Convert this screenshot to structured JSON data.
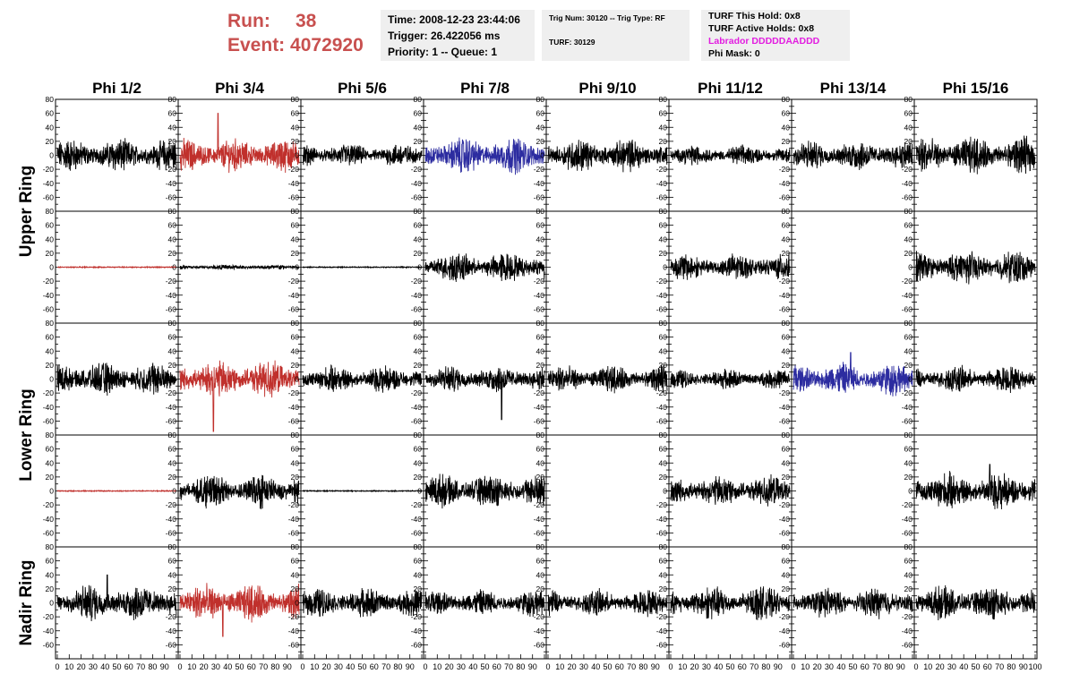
{
  "header": {
    "run_label": "Run:",
    "run_value": "38",
    "event_label": "Event:",
    "event_value": "4072920",
    "time": "Time: 2008-12-23 23:44:06",
    "trigger": "Trigger: 26.422056 ms",
    "priority": "Priority: 1 -- Queue: 1",
    "trig_num": "Trig Num: 30120 -- Trig Type: RF",
    "turf": "TURF: 30129",
    "turf_this_hold": "TURF This Hold: 0x8",
    "turf_active_holds": "TURF Active Holds: 0x8",
    "labrador": "Labrador DDDDDAADDD",
    "phi_mask": "Phi Mask: 0"
  },
  "colors": {
    "header_red": "#c8504f",
    "labrador_magenta": "#e21de0",
    "trace_black": "#000000",
    "trace_red": "#c0302c",
    "trace_blue": "#2c2ca0",
    "info_bg": "#efefef"
  },
  "chart_data": {
    "type": "line",
    "columns": [
      "Phi 1/2",
      "Phi 3/4",
      "Phi 5/6",
      "Phi 7/8",
      "Phi 9/10",
      "Phi 11/12",
      "Phi 13/14",
      "Phi 15/16"
    ],
    "ring_labels": [
      "Upper Ring",
      "Lower Ring",
      "Nadir Ring"
    ],
    "ylim": [
      -80,
      80
    ],
    "y_ticks": [
      -60,
      -40,
      -20,
      0,
      20,
      40,
      60,
      80
    ],
    "xlim": [
      0,
      100
    ],
    "x_tick_labels": [
      "0",
      "10",
      "20",
      "30",
      "40",
      "50",
      "60",
      "70",
      "80",
      "90",
      "100"
    ],
    "grid": false,
    "rows": [
      {
        "ring": "Upper Ring",
        "panels": [
          {
            "color": "black",
            "amplitude": 20,
            "spike": null
          },
          {
            "color": "red",
            "amplitude": 20,
            "spike": {
              "x": 32,
              "y": 60
            }
          },
          {
            "color": "black",
            "amplitude": 14,
            "spike": null
          },
          {
            "color": "blue",
            "amplitude": 22,
            "spike": null
          },
          {
            "color": "black",
            "amplitude": 20,
            "spike": null
          },
          {
            "color": "black",
            "amplitude": 12,
            "spike": null
          },
          {
            "color": "black",
            "amplitude": 18,
            "spike": null
          },
          {
            "color": "black",
            "amplitude": 22,
            "spike": null
          }
        ]
      },
      {
        "ring": "Upper Ring",
        "panels": [
          {
            "color": "red",
            "amplitude": 0,
            "spike": null
          },
          {
            "color": "black",
            "amplitude": 3,
            "spike": null
          },
          {
            "color": "black",
            "amplitude": 0,
            "spike": null
          },
          {
            "color": "black",
            "amplitude": 18,
            "spike": null
          },
          {
            "color": "none",
            "amplitude": 0,
            "spike": null
          },
          {
            "color": "black",
            "amplitude": 16,
            "spike": null
          },
          {
            "color": "none",
            "amplitude": 0,
            "spike": null
          },
          {
            "color": "black",
            "amplitude": 20,
            "spike": null
          }
        ]
      },
      {
        "ring": "Lower Ring",
        "panels": [
          {
            "color": "black",
            "amplitude": 20,
            "spike": null
          },
          {
            "color": "red",
            "amplitude": 22,
            "spike": {
              "x": 28,
              "y": -75
            }
          },
          {
            "color": "black",
            "amplitude": 16,
            "spike": null
          },
          {
            "color": "black",
            "amplitude": 16,
            "spike": {
              "x": 64,
              "y": -58
            }
          },
          {
            "color": "black",
            "amplitude": 16,
            "spike": null
          },
          {
            "color": "black",
            "amplitude": 12,
            "spike": null
          },
          {
            "color": "blue",
            "amplitude": 20,
            "spike": {
              "x": 48,
              "y": 38
            }
          },
          {
            "color": "black",
            "amplitude": 16,
            "spike": null
          }
        ]
      },
      {
        "ring": "Lower Ring",
        "panels": [
          {
            "color": "red",
            "amplitude": 0,
            "spike": null
          },
          {
            "color": "black",
            "amplitude": 20,
            "spike": null
          },
          {
            "color": "black",
            "amplitude": 0,
            "spike": null
          },
          {
            "color": "black",
            "amplitude": 20,
            "spike": null
          },
          {
            "color": "none",
            "amplitude": 0,
            "spike": null
          },
          {
            "color": "black",
            "amplitude": 18,
            "spike": null
          },
          {
            "color": "none",
            "amplitude": 0,
            "spike": null
          },
          {
            "color": "black",
            "amplitude": 22,
            "spike": {
              "x": 62,
              "y": 38
            }
          }
        ]
      },
      {
        "ring": "Nadir Ring",
        "panels": [
          {
            "color": "black",
            "amplitude": 22,
            "spike": {
              "x": 42,
              "y": 40
            }
          },
          {
            "color": "red",
            "amplitude": 22,
            "spike": {
              "x": 36,
              "y": -48
            }
          },
          {
            "color": "black",
            "amplitude": 18,
            "spike": null
          },
          {
            "color": "black",
            "amplitude": 16,
            "spike": null
          },
          {
            "color": "black",
            "amplitude": 16,
            "spike": null
          },
          {
            "color": "black",
            "amplitude": 20,
            "spike": null
          },
          {
            "color": "black",
            "amplitude": 18,
            "spike": null
          },
          {
            "color": "black",
            "amplitude": 20,
            "spike": null
          }
        ]
      }
    ]
  }
}
